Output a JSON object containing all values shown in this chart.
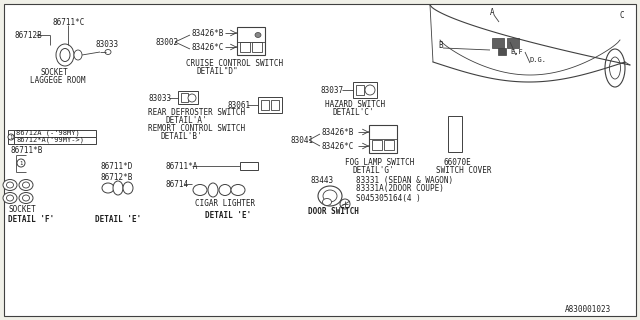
{
  "bg_color": "#f0f0e8",
  "white": "#ffffff",
  "line_color": "#404040",
  "text_color": "#202020",
  "fig_width": 6.4,
  "fig_height": 3.2,
  "dpi": 100,
  "diagram_id": "A830001023",
  "part_86711c": "86711*C",
  "part_86712b": "86712B",
  "part_83033a": "83033",
  "part_83002": "83002",
  "part_83426b1": "83426*B",
  "part_83426c1": "83426*C",
  "part_83033b": "83033",
  "part_83061": "83061",
  "part_83037": "83037",
  "part_83041": "83041",
  "part_83426b2": "83426*B",
  "part_83426c2": "83426*C",
  "part_86712a": "86712A (-'98MY)",
  "part_86712aa": "86712*A('99MY->)",
  "part_86711b": "86711*B",
  "part_86711a": "86711*A",
  "part_86711d": "86711*D",
  "part_86712bb": "86712*B",
  "part_86714": "86714",
  "part_83443": "83443",
  "part_83331": "83331 (SEDAN & WAGON)",
  "part_83331a": "83331A(2DOOR COUPE)",
  "part_045305164": "S045305164(4 )",
  "part_66070e": "66070E",
  "label_socket": "SOCKET",
  "label_laggege": "LAGGEGE ROOM",
  "label_cruise1": "CRUISE CONTROL SWITCH",
  "label_cruise2": "DETAIL\"D\"",
  "label_rear1": "REAR DEFROSTER SWITCH",
  "label_rear2": "DETAIL'A'",
  "label_remote1": "REMORT CONTROL SWITCH",
  "label_remote2": "DETAIL'B'",
  "label_hazard1": "HAZARD SWITCH",
  "label_hazard2": "DETAIL'C'",
  "label_fog1": "FOG LAMP SWITCH",
  "label_fog2": "DETAIL'G'",
  "label_switch_cover": "SWITCH COVER",
  "label_cigar": "CIGAR LIGHTER",
  "label_door": "DOOR SWITCH",
  "label_detail_f": "DETAIL 'F'",
  "label_detail_e1": "DETAIL 'E'",
  "label_detail_e2": "DETAIL 'E'",
  "label_a": "A",
  "label_b": "B",
  "label_c": "C",
  "label_dg": "D.G.",
  "label_ef": "E,F"
}
